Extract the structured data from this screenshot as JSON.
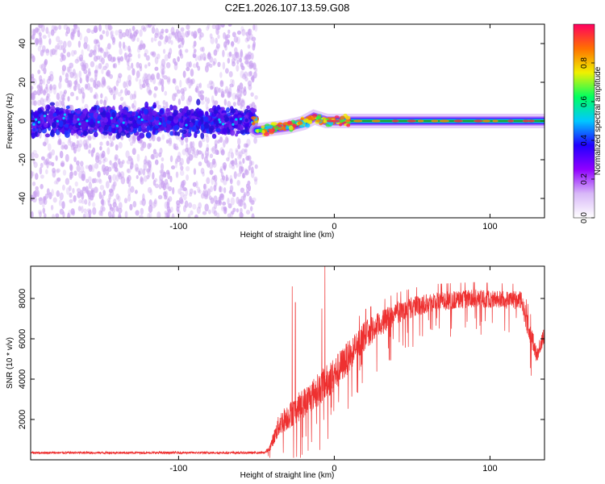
{
  "title": "C2E1.2026.107.13.59.G08",
  "chart_data": [
    {
      "type": "heatmap",
      "xlabel": "Height of straight line (km)",
      "ylabel": "Frequency (Hz)",
      "xlim": [
        -195,
        135
      ],
      "ylim": [
        -50,
        50
      ],
      "xticks": [
        -100,
        0,
        100
      ],
      "xtick_labels": [
        "-100",
        "0",
        "100"
      ],
      "yticks": [
        -40,
        -20,
        0,
        20,
        40
      ],
      "ytick_labels": [
        "-40",
        "-20",
        "0",
        "20",
        "40"
      ],
      "colorbar": {
        "label": "Normalized spectral amplitude",
        "range": [
          0,
          1
        ],
        "ticks": [
          0.0,
          0.2,
          0.4,
          0.6,
          0.8
        ],
        "tick_labels": [
          "0.0",
          "0.2",
          "0.4",
          "0.6",
          "0.8"
        ],
        "colors": [
          "#ffffff",
          "#d8b8f8",
          "#9000ff",
          "#2000ff",
          "#00c8ff",
          "#00ff60",
          "#f0f000",
          "#ff7000",
          "#ff0060"
        ]
      },
      "noise_region": {
        "x": [
          -195,
          -50
        ],
        "scatter_y": [
          -50,
          50
        ],
        "core_y": [
          -10,
          10
        ],
        "core_color": "#4a10e0",
        "scatter_color": "#c8a0f0"
      },
      "signal_track": [
        {
          "x": -50,
          "y": -5
        },
        {
          "x": -40,
          "y": -4
        },
        {
          "x": -30,
          "y": -3
        },
        {
          "x": -20,
          "y": -1
        },
        {
          "x": -13,
          "y": 2
        },
        {
          "x": -5,
          "y": 0
        },
        {
          "x": 10,
          "y": 0
        },
        {
          "x": 135,
          "y": 0
        }
      ],
      "grid": false
    },
    {
      "type": "line",
      "xlabel": "Height of straight line (km)",
      "ylabel": "SNR (10 * v/v)",
      "xlim": [
        -195,
        135
      ],
      "ylim": [
        0,
        9600
      ],
      "xticks": [
        -100,
        0,
        100
      ],
      "xtick_labels": [
        "-100",
        "0",
        "100"
      ],
      "yticks": [
        2000,
        4000,
        6000,
        8000
      ],
      "ytick_labels": [
        "2000",
        "4000",
        "6000",
        "8000"
      ],
      "line_color": "#ee3030",
      "envelope": [
        {
          "x": -195,
          "mean": 350,
          "spread": 120
        },
        {
          "x": -45,
          "mean": 350,
          "spread": 120
        },
        {
          "x": -42,
          "mean": 500,
          "spread": 250
        },
        {
          "x": -35,
          "mean": 1800,
          "spread": 1200
        },
        {
          "x": -20,
          "mean": 2800,
          "spread": 1500
        },
        {
          "x": 0,
          "mean": 4200,
          "spread": 1800
        },
        {
          "x": 10,
          "mean": 5200,
          "spread": 1600
        },
        {
          "x": 20,
          "mean": 6200,
          "spread": 1400
        },
        {
          "x": 40,
          "mean": 7300,
          "spread": 1100
        },
        {
          "x": 60,
          "mean": 7800,
          "spread": 1000
        },
        {
          "x": 90,
          "mean": 8000,
          "spread": 900
        },
        {
          "x": 120,
          "mean": 7900,
          "spread": 900
        },
        {
          "x": 125,
          "mean": 6500,
          "spread": 1200
        },
        {
          "x": 130,
          "mean": 5200,
          "spread": 800
        },
        {
          "x": 135,
          "mean": 6200,
          "spread": 800
        }
      ],
      "spikes": [
        {
          "x": -27,
          "y": 8600
        },
        {
          "x": -25,
          "y": 7800
        },
        {
          "x": -6,
          "y": 9600
        },
        {
          "x": -8,
          "y": 7500
        }
      ],
      "grid": false
    }
  ]
}
